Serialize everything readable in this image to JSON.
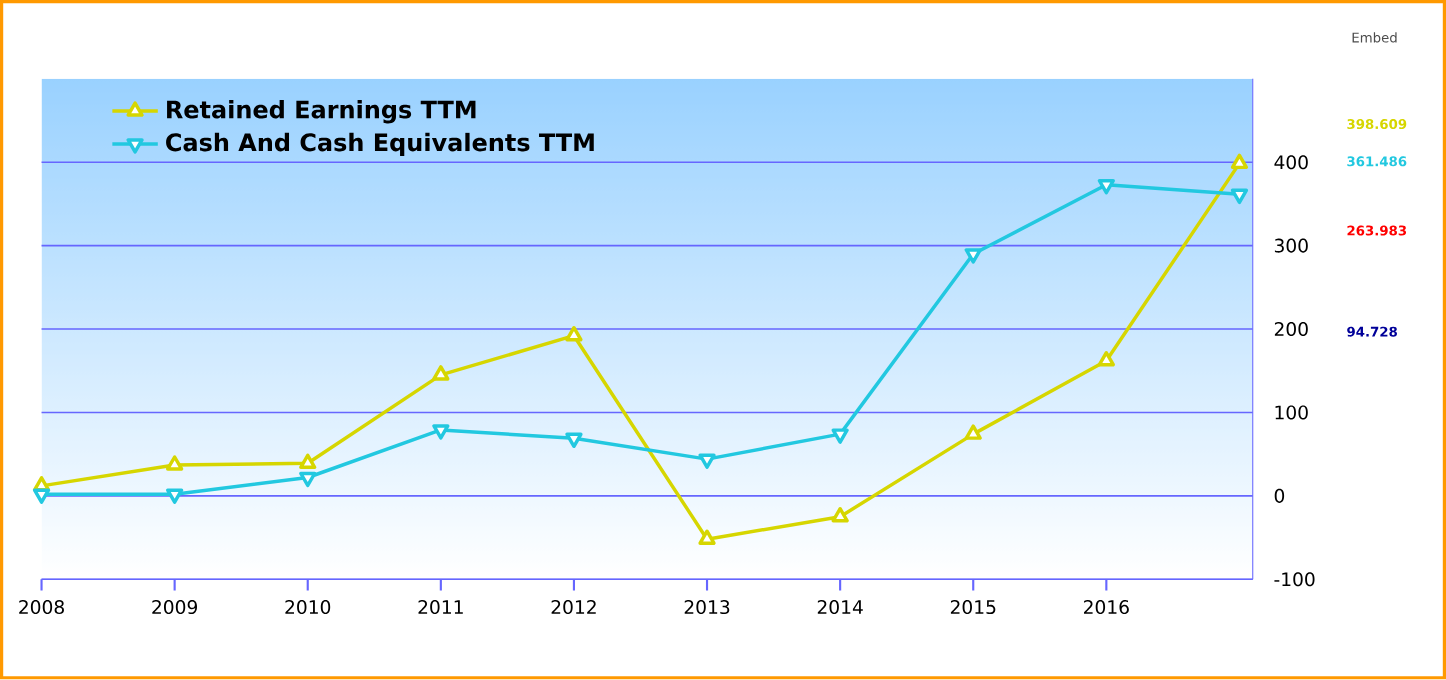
{
  "chart_data": {
    "type": "line",
    "x": [
      2008,
      2009,
      2010,
      2011,
      2012,
      2013,
      2014,
      2015,
      2016,
      2017
    ],
    "series": [
      {
        "name": "Retained Earnings TTM",
        "color": "#d6d600",
        "marker": "triangle",
        "values": [
          12,
          37,
          39,
          145,
          192,
          -52,
          -25,
          74,
          162,
          398.609
        ]
      },
      {
        "name": "Cash And Cash Equivalents TTM",
        "color": "#22c8e0",
        "marker": "triangle down",
        "values": [
          2,
          2,
          22,
          79,
          69,
          44,
          74,
          290,
          373,
          361.486
        ]
      }
    ],
    "xlim": [
      2008,
      2017.1
    ],
    "xticks": [
      2008,
      2009,
      2010,
      2011,
      2012,
      2013,
      2014,
      2015,
      2016
    ],
    "ylim": [
      -100,
      500
    ],
    "yticks": [
      -100,
      0,
      100,
      200,
      300,
      400
    ],
    "grid": "y",
    "legend": "top left",
    "line_style": "solid",
    "annotations": [
      "Embed",
      "398.609",
      "361.486",
      "263.983",
      "94.728"
    ]
  }
}
